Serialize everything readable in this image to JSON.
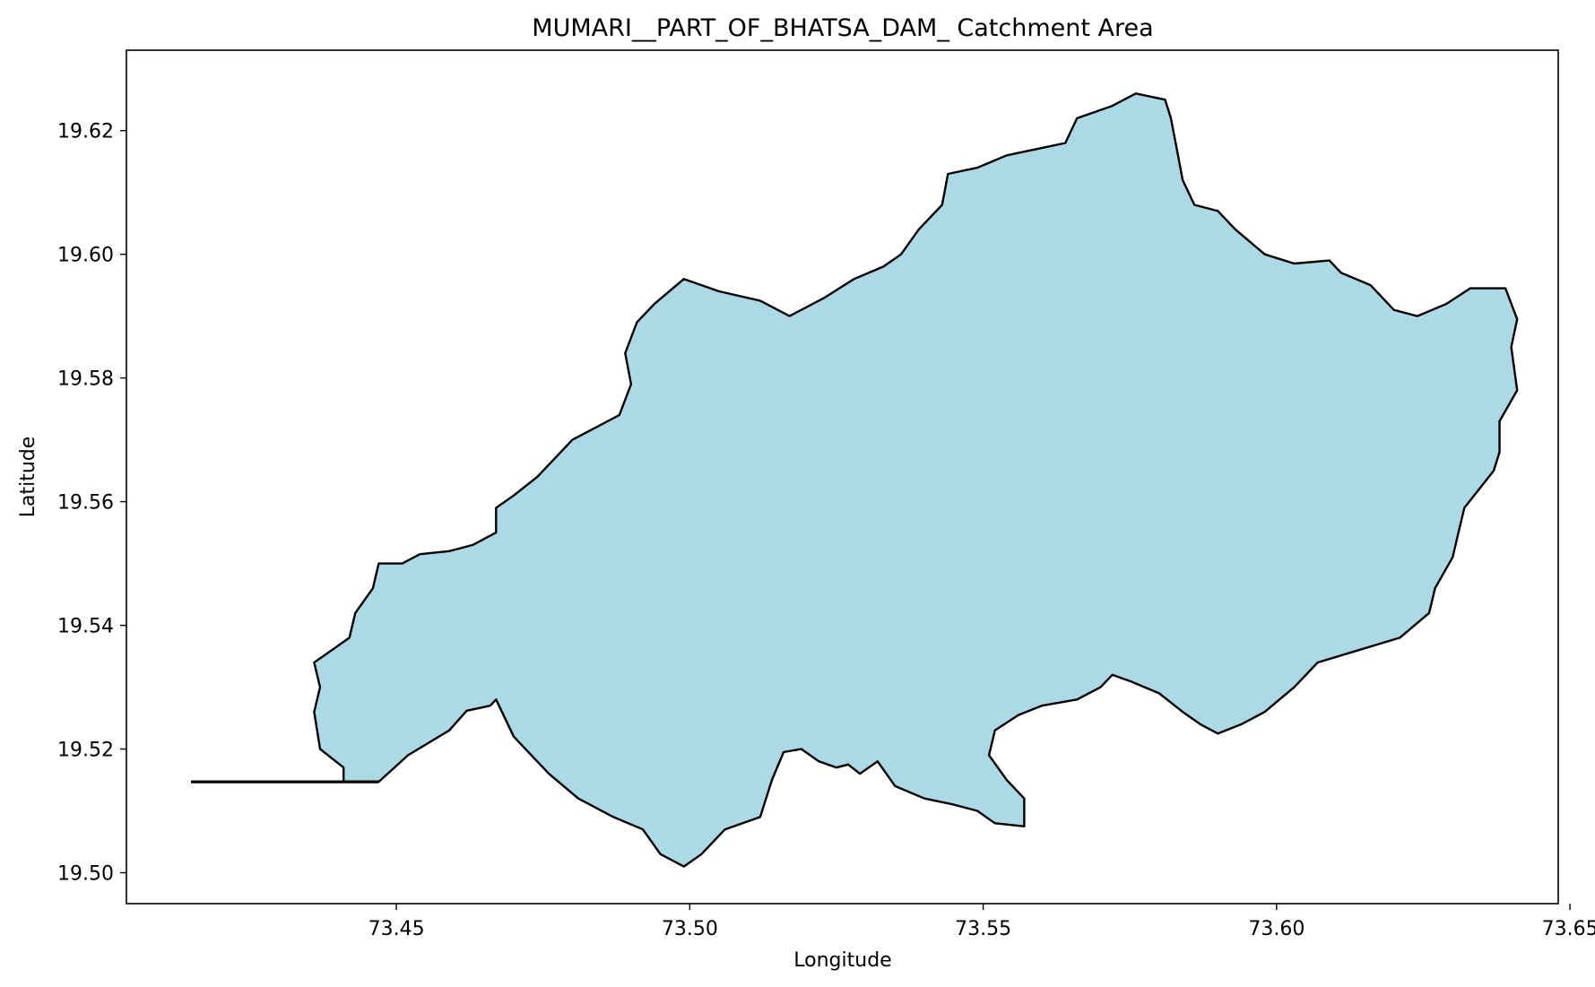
{
  "chart_data": {
    "type": "map",
    "title": "MUMARI__PART_OF_BHATSA_DAM_ Catchment Area",
    "xlabel": "Longitude",
    "ylabel": "Latitude",
    "xlim": [
      73.404,
      73.648
    ],
    "ylim": [
      19.495,
      19.633
    ],
    "grid": false,
    "xticks": [
      73.45,
      73.5,
      73.55,
      73.6,
      73.65
    ],
    "xtick_labels": [
      "73.45",
      "73.50",
      "73.55",
      "73.60",
      "73.65"
    ],
    "yticks": [
      19.5,
      19.52,
      19.54,
      19.56,
      19.58,
      19.6,
      19.62
    ],
    "ytick_labels": [
      "19.50",
      "19.52",
      "19.54",
      "19.56",
      "19.58",
      "19.60",
      "19.62"
    ],
    "fill_color": "#add8e6",
    "edge_color": "#000000",
    "outlet_line": [
      [
        73.415,
        19.5147
      ],
      [
        73.447,
        19.5147
      ]
    ],
    "boundary": [
      [
        73.447,
        19.5147
      ],
      [
        73.452,
        19.519
      ],
      [
        73.459,
        19.523
      ],
      [
        73.462,
        19.5262
      ],
      [
        73.466,
        19.527
      ],
      [
        73.467,
        19.528
      ],
      [
        73.47,
        19.522
      ],
      [
        73.476,
        19.516
      ],
      [
        73.481,
        19.512
      ],
      [
        73.487,
        19.509
      ],
      [
        73.492,
        19.507
      ],
      [
        73.495,
        19.503
      ],
      [
        73.499,
        19.501
      ],
      [
        73.502,
        19.503
      ],
      [
        73.506,
        19.507
      ],
      [
        73.512,
        19.509
      ],
      [
        73.514,
        19.515
      ],
      [
        73.516,
        19.5195
      ],
      [
        73.519,
        19.52
      ],
      [
        73.522,
        19.518
      ],
      [
        73.525,
        19.517
      ],
      [
        73.527,
        19.5175
      ],
      [
        73.529,
        19.516
      ],
      [
        73.532,
        19.518
      ],
      [
        73.535,
        19.514
      ],
      [
        73.54,
        19.512
      ],
      [
        73.545,
        19.511
      ],
      [
        73.549,
        19.51
      ],
      [
        73.552,
        19.508
      ],
      [
        73.557,
        19.5075
      ],
      [
        73.557,
        19.512
      ],
      [
        73.554,
        19.515
      ],
      [
        73.551,
        19.519
      ],
      [
        73.552,
        19.523
      ],
      [
        73.556,
        19.5255
      ],
      [
        73.56,
        19.527
      ],
      [
        73.566,
        19.528
      ],
      [
        73.57,
        19.53
      ],
      [
        73.572,
        19.532
      ],
      [
        73.575,
        19.531
      ],
      [
        73.58,
        19.529
      ],
      [
        73.584,
        19.526
      ],
      [
        73.587,
        19.524
      ],
      [
        73.59,
        19.5225
      ],
      [
        73.594,
        19.524
      ],
      [
        73.598,
        19.526
      ],
      [
        73.603,
        19.53
      ],
      [
        73.607,
        19.534
      ],
      [
        73.614,
        19.536
      ],
      [
        73.621,
        19.538
      ],
      [
        73.626,
        19.542
      ],
      [
        73.627,
        19.546
      ],
      [
        73.63,
        19.551
      ],
      [
        73.631,
        19.555
      ],
      [
        73.632,
        19.559
      ],
      [
        73.637,
        19.565
      ],
      [
        73.638,
        19.568
      ],
      [
        73.638,
        19.573
      ],
      [
        73.641,
        19.578
      ],
      [
        73.64,
        19.585
      ],
      [
        73.641,
        19.5895
      ],
      [
        73.639,
        19.5945
      ],
      [
        73.633,
        19.5945
      ],
      [
        73.629,
        19.592
      ],
      [
        73.624,
        19.59
      ],
      [
        73.62,
        19.591
      ],
      [
        73.616,
        19.595
      ],
      [
        73.611,
        19.597
      ],
      [
        73.609,
        19.599
      ],
      [
        73.603,
        19.5985
      ],
      [
        73.598,
        19.6
      ],
      [
        73.593,
        19.604
      ],
      [
        73.59,
        19.607
      ],
      [
        73.586,
        19.608
      ],
      [
        73.584,
        19.612
      ],
      [
        73.583,
        19.617
      ],
      [
        73.582,
        19.622
      ],
      [
        73.581,
        19.625
      ],
      [
        73.576,
        19.626
      ],
      [
        73.572,
        19.624
      ],
      [
        73.566,
        19.622
      ],
      [
        73.564,
        19.618
      ],
      [
        73.559,
        19.617
      ],
      [
        73.554,
        19.616
      ],
      [
        73.549,
        19.614
      ],
      [
        73.544,
        19.613
      ],
      [
        73.543,
        19.608
      ],
      [
        73.539,
        19.604
      ],
      [
        73.536,
        19.6
      ],
      [
        73.533,
        19.598
      ],
      [
        73.528,
        19.596
      ],
      [
        73.523,
        19.593
      ],
      [
        73.517,
        19.59
      ],
      [
        73.512,
        19.5925
      ],
      [
        73.505,
        19.594
      ],
      [
        73.499,
        19.596
      ],
      [
        73.494,
        19.592
      ],
      [
        73.491,
        19.589
      ],
      [
        73.489,
        19.584
      ],
      [
        73.49,
        19.579
      ],
      [
        73.488,
        19.574
      ],
      [
        73.484,
        19.572
      ],
      [
        73.48,
        19.57
      ],
      [
        73.477,
        19.567
      ],
      [
        73.474,
        19.564
      ],
      [
        73.47,
        19.561
      ],
      [
        73.467,
        19.559
      ],
      [
        73.467,
        19.555
      ],
      [
        73.463,
        19.553
      ],
      [
        73.459,
        19.552
      ],
      [
        73.454,
        19.5515
      ],
      [
        73.451,
        19.55
      ],
      [
        73.447,
        19.55
      ],
      [
        73.446,
        19.546
      ],
      [
        73.443,
        19.542
      ],
      [
        73.442,
        19.538
      ],
      [
        73.439,
        19.536
      ],
      [
        73.436,
        19.534
      ],
      [
        73.437,
        19.53
      ],
      [
        73.436,
        19.526
      ],
      [
        73.437,
        19.52
      ],
      [
        73.441,
        19.517
      ],
      [
        73.441,
        19.5147
      ],
      [
        73.447,
        19.5147
      ]
    ]
  }
}
